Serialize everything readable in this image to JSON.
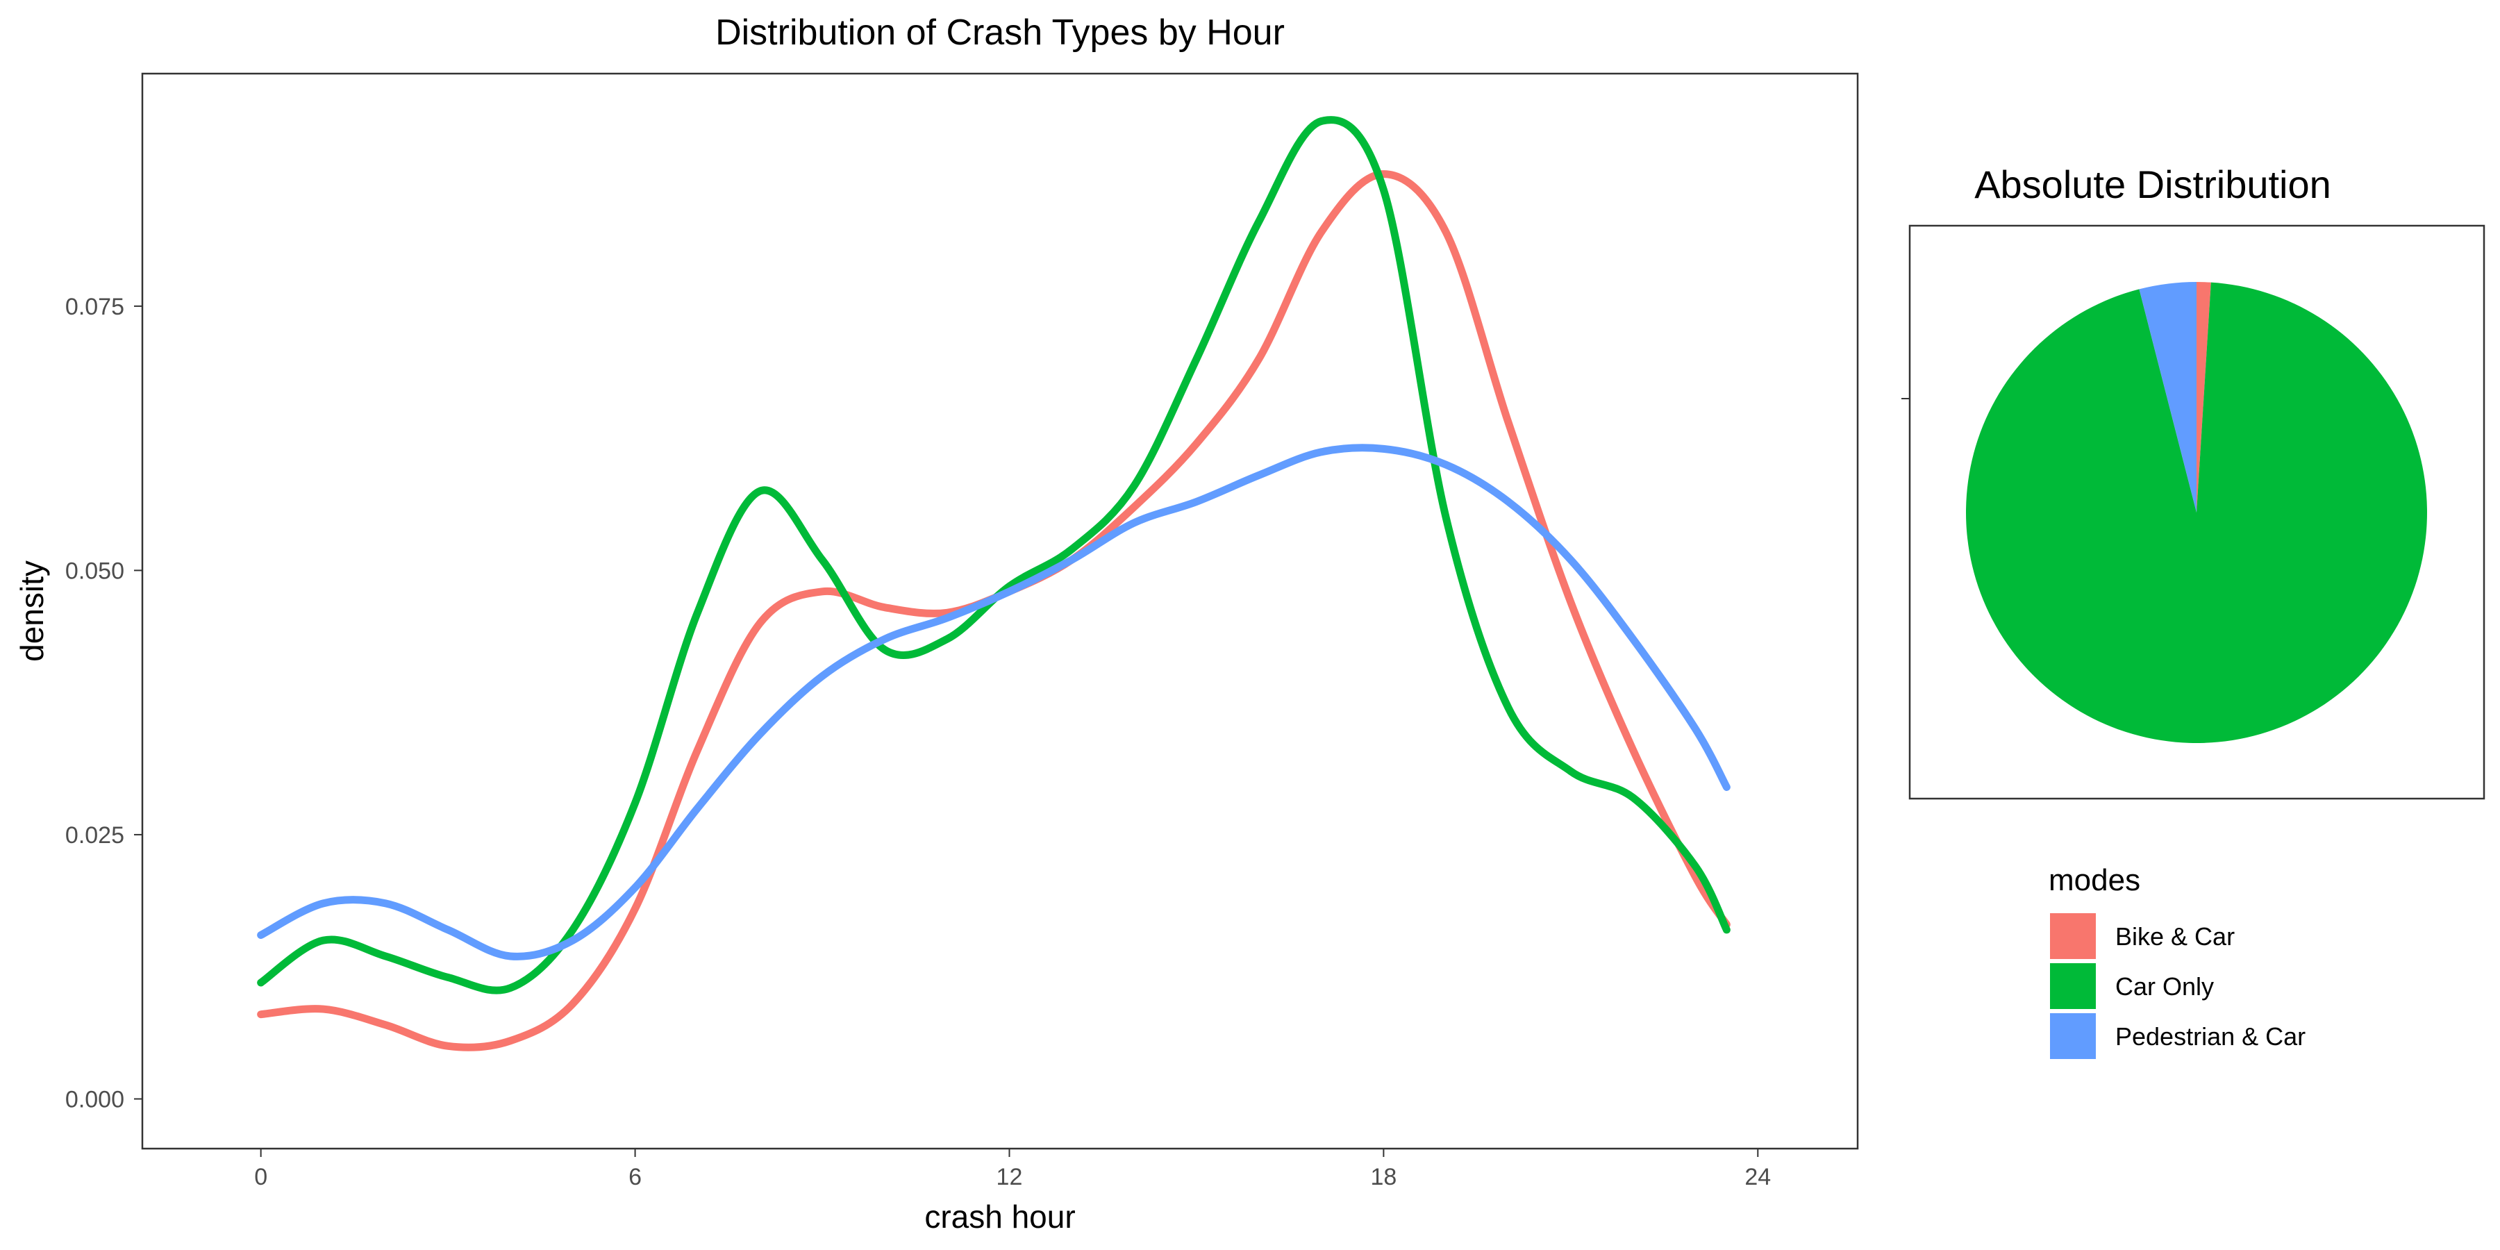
{
  "chart_data": [
    {
      "type": "line",
      "title": "Distribution of Crash Types by Hour",
      "xlabel": "crash hour",
      "ylabel": "density",
      "xlim": [
        -2,
        41
      ],
      "ylim": [
        -0.0047,
        0.097
      ],
      "x_ticks": [
        0,
        6,
        12,
        18,
        24
      ],
      "x_tick_labels": [
        "0",
        "6",
        "12",
        "18",
        "24"
      ],
      "y_ticks": [
        0,
        0.025,
        0.05,
        0.075
      ],
      "y_tick_labels": [
        "0.000",
        "0.025",
        "0.050",
        "0.075"
      ],
      "grid": false,
      "series": [
        {
          "name": "Bike & Car",
          "color": "#F8766D",
          "x": [
            0,
            1,
            2,
            3,
            4,
            5,
            6,
            7,
            8,
            9,
            10,
            11,
            12,
            13,
            14,
            15,
            16,
            17,
            18,
            19,
            20,
            21,
            22,
            23,
            23.5
          ],
          "y": [
            0.008,
            0.0085,
            0.007,
            0.005,
            0.0055,
            0.009,
            0.018,
            0.033,
            0.045,
            0.048,
            0.0465,
            0.046,
            0.048,
            0.051,
            0.056,
            0.062,
            0.07,
            0.082,
            0.0875,
            0.082,
            0.064,
            0.047,
            0.033,
            0.021,
            0.0165
          ]
        },
        {
          "name": "Car Only",
          "color": "#00BA38",
          "x": [
            0,
            1,
            2,
            3,
            4,
            5,
            6,
            7,
            8,
            9,
            10,
            11,
            12,
            13,
            14,
            15,
            16,
            17,
            18,
            19,
            20,
            21,
            22,
            23,
            23.5
          ],
          "y": [
            0.011,
            0.015,
            0.0135,
            0.0115,
            0.0105,
            0.016,
            0.028,
            0.046,
            0.0575,
            0.051,
            0.0425,
            0.0435,
            0.0485,
            0.052,
            0.058,
            0.07,
            0.083,
            0.0925,
            0.086,
            0.055,
            0.037,
            0.031,
            0.0285,
            0.022,
            0.016
          ]
        },
        {
          "name": "Pedestrian & Car",
          "color": "#619CFF",
          "x": [
            0,
            1,
            2,
            3,
            4,
            5,
            6,
            7,
            8,
            9,
            10,
            11,
            12,
            13,
            14,
            15,
            16,
            17,
            18,
            19,
            20,
            21,
            22,
            23,
            23.5
          ],
          "y": [
            0.0155,
            0.0185,
            0.0185,
            0.016,
            0.0135,
            0.015,
            0.02,
            0.0275,
            0.0345,
            0.04,
            0.0435,
            0.0455,
            0.048,
            0.051,
            0.0545,
            0.0565,
            0.059,
            0.0612,
            0.0615,
            0.06,
            0.0565,
            0.051,
            0.0435,
            0.035,
            0.0295
          ]
        }
      ]
    },
    {
      "type": "pie",
      "title": "Absolute Distribution",
      "legend_title": "modes",
      "legend_placement": "bottom-right",
      "slices": [
        {
          "name": "Bike & Car",
          "value": 1.0,
          "color": "#F8766D"
        },
        {
          "name": "Car Only",
          "value": 95.0,
          "color": "#00BA38"
        },
        {
          "name": "Pedestrian & Car",
          "value": 4.0,
          "color": "#619CFF"
        }
      ]
    }
  ]
}
